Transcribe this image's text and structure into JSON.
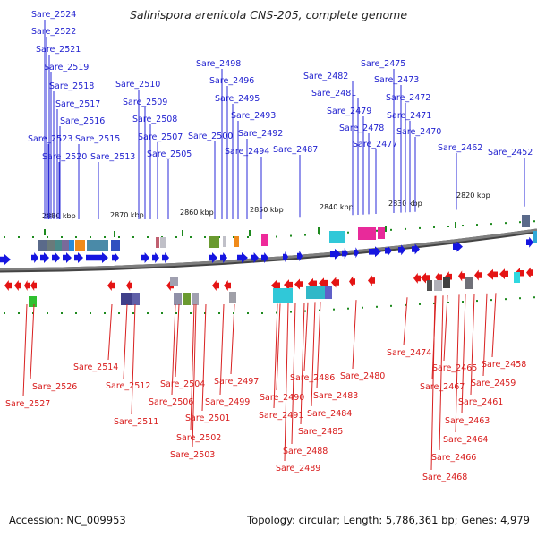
{
  "title": "Salinispora arenicola CNS-205, complete genome",
  "footer": {
    "accession": "Accession: NC_009953",
    "summary": "Topology: circular; Length: 5,786,361 bp; Genes: 4,979"
  },
  "colors": {
    "forward": "#1515e0",
    "reverse": "#e41414",
    "backbone": "#7f7f7f",
    "tick": "#1e8a1e"
  },
  "scale_labels": [
    "2880 kbp",
    "2870 kbp",
    "2860 kbp",
    "2850 kbp",
    "2840 kbp",
    "2830 kbp",
    "2820 kbp"
  ],
  "forward_genes": [
    "Sare_2524",
    "Sare_2522",
    "Sare_2521",
    "Sare_2519",
    "Sare_2518",
    "Sare_2517",
    "Sare_2516",
    "Sare_2523",
    "Sare_2515",
    "Sare_2520",
    "Sare_2513",
    "Sare_2510",
    "Sare_2509",
    "Sare_2508",
    "Sare_2507",
    "Sare_2505",
    "Sare_2498",
    "Sare_2496",
    "Sare_2495",
    "Sare_2493",
    "Sare_2500",
    "Sare_2492",
    "Sare_2494",
    "Sare_2487",
    "Sare_2482",
    "Sare_2481",
    "Sare_2479",
    "Sare_2478",
    "Sare_2477",
    "Sare_2475",
    "Sare_2473",
    "Sare_2472",
    "Sare_2471",
    "Sare_2470",
    "Sare_2462",
    "Sare_2452"
  ],
  "reverse_genes": [
    "Sare_2514",
    "Sare_2526",
    "Sare_2527",
    "Sare_2512",
    "Sare_2511",
    "Sare_2504",
    "Sare_2506",
    "Sare_2502",
    "Sare_2503",
    "Sare_2501",
    "Sare_2499",
    "Sare_2497",
    "Sare_2486",
    "Sare_2483",
    "Sare_2490",
    "Sare_2491",
    "Sare_2484",
    "Sare_2485",
    "Sare_2488",
    "Sare_2489",
    "Sare_2480",
    "Sare_2474",
    "Sare_2465",
    "Sare_2467",
    "Sare_2458",
    "Sare_2459",
    "Sare_2461",
    "Sare_2463",
    "Sare_2464",
    "Sare_2466",
    "Sare_2468"
  ]
}
